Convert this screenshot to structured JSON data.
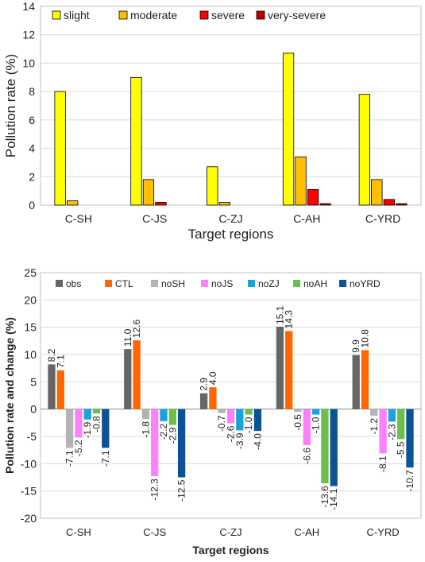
{
  "chart_data": [
    {
      "type": "bar",
      "xlabel": "Target regions",
      "ylabel": "Pollution rate (%)",
      "ylim": [
        0,
        14
      ],
      "yticks": [
        "0",
        "2",
        "4",
        "6",
        "8",
        "10",
        "12",
        "14"
      ],
      "grid": true,
      "legend_position": "top-left",
      "categories": [
        "C-SH",
        "C-JS",
        "C-ZJ",
        "C-AH",
        "C-YRD"
      ],
      "series": [
        {
          "name": "slight",
          "color": "#FFFF00",
          "values": [
            8.0,
            9.0,
            2.7,
            10.7,
            7.8
          ]
        },
        {
          "name": "moderate",
          "color": "#FFC000",
          "values": [
            0.3,
            1.8,
            0.2,
            3.4,
            1.8
          ]
        },
        {
          "name": "severe",
          "color": "#FF0000",
          "values": [
            0.0,
            0.2,
            0.0,
            1.1,
            0.4
          ]
        },
        {
          "name": "very-severe",
          "color": "#C00000",
          "values": [
            0.0,
            0.0,
            0.0,
            0.1,
            0.1
          ]
        }
      ]
    },
    {
      "type": "bar",
      "xlabel": "Target regions",
      "ylabel": "Pollution rate and change (%)",
      "ylim": [
        -20,
        25
      ],
      "yticks": [
        "-20",
        "-15",
        "-10",
        "-5",
        "0",
        "5",
        "10",
        "15",
        "20",
        "25"
      ],
      "grid": true,
      "legend_position": "top",
      "categories": [
        "C-SH",
        "C-JS",
        "C-ZJ",
        "C-AH",
        "C-YRD"
      ],
      "series": [
        {
          "name": "obs",
          "color": "#666666",
          "values": [
            8.2,
            11.0,
            2.9,
            15.1,
            9.9
          ],
          "labels": [
            "8.2",
            "11.0",
            "2.9",
            "15.1",
            "9.9"
          ]
        },
        {
          "name": "CTL",
          "color": "#FF6600",
          "values": [
            7.1,
            12.6,
            4.0,
            14.3,
            10.8
          ],
          "labels": [
            "7.1",
            "12.6",
            "4.0",
            "14.3",
            "10.8"
          ]
        },
        {
          "name": "noSH",
          "color": "#B3B3B3",
          "values": [
            -7.1,
            -1.8,
            -0.7,
            -0.5,
            -1.2
          ],
          "labels": [
            "-7.1",
            "-1.8",
            "-0.7",
            "-0.5",
            "-1.2"
          ]
        },
        {
          "name": "noJS",
          "color": "#FF80FF",
          "values": [
            -5.2,
            -12.3,
            -2.6,
            -6.6,
            -8.1
          ],
          "labels": [
            "-5.2",
            "-12.3",
            "-2.6",
            "-6.6",
            "-8.1"
          ]
        },
        {
          "name": "noZJ",
          "color": "#1AA3D9",
          "values": [
            -1.9,
            -2.2,
            -3.9,
            -1.0,
            -2.3
          ],
          "labels": [
            "-1.9",
            "-2.2",
            "-3.9",
            "-1.0",
            "-2.3"
          ]
        },
        {
          "name": "noAH",
          "color": "#6CC04A",
          "values": [
            -0.8,
            -2.9,
            -1.0,
            -13.6,
            -5.5
          ],
          "labels": [
            "-0.8",
            "-2.9",
            "-1.0",
            "-13.6",
            "-5.5"
          ]
        },
        {
          "name": "noYRD",
          "color": "#0B5394",
          "values": [
            -7.1,
            -12.5,
            -4.0,
            -14.1,
            -10.7
          ],
          "labels": [
            "-7.1",
            "-12.5",
            "-4.0",
            "-14.1",
            "-10.7"
          ]
        }
      ]
    }
  ]
}
